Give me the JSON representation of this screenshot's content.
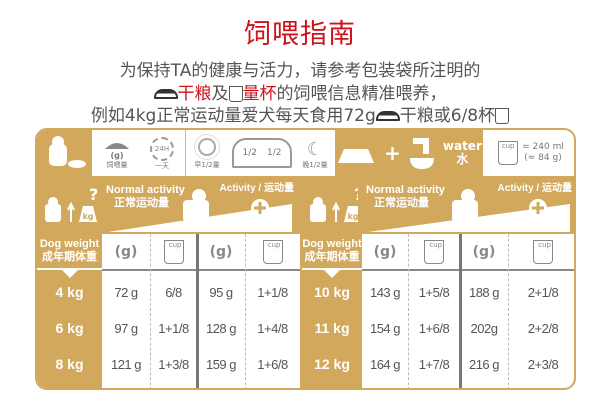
{
  "title": "饲喂指南",
  "intro": {
    "line1": "为保持TA的健康与活力，请参考包装袋所注明的",
    "line2_dry": "干粮",
    "line2_and": "及",
    "line2_cup": "量杯",
    "line2_rest": "的饲喂信息精准喂养，",
    "line3_a": "例如4kg正常运动量爱犬每天食用72g",
    "line3_b": "干粮或6/8杯"
  },
  "top_row": {
    "grams": "(g)",
    "feed_amount": "饲喂量",
    "clock": "24H",
    "one_day": "一天",
    "morning": "早1/2量",
    "half": "1/2",
    "evening": "晚1/2量",
    "water": "water",
    "water_cn": "水",
    "cup": "cup",
    "cup_ml": "= 240 ml",
    "cup_g": "(≈ 84 g)"
  },
  "header": {
    "dog_weight": "Dog weight",
    "dog_weight_cn": "成年期体重",
    "kg": "kg",
    "normal": "Normal activity",
    "normal_cn": "正常运动量",
    "activity": "Activity / 运动量",
    "grams": "(g)",
    "cup": "cup"
  },
  "left_rows": [
    {
      "weight": "4 kg",
      "ng": "72 g",
      "nc": "6/8",
      "ag": "95 g",
      "ac": "1+1/8"
    },
    {
      "weight": "6 kg",
      "ng": "97 g",
      "nc": "1+1/8",
      "ag": "128 g",
      "ac": "1+4/8"
    },
    {
      "weight": "8  kg",
      "ng": "121 g",
      "nc": "1+3/8",
      "ag": "159 g",
      "ac": "1+6/8"
    }
  ],
  "right_rows": [
    {
      "weight": "10 kg",
      "ng": "143 g",
      "nc": "1+5/8",
      "ag": "188 g",
      "ac": "2+1/8"
    },
    {
      "weight": "11 kg",
      "ng": "154 g",
      "nc": "1+6/8",
      "ag": "202g",
      "ac": "2+2/8"
    },
    {
      "weight": "12 kg",
      "ng": "164 g",
      "nc": "1+7/8",
      "ag": "216 g",
      "ac": "2+3/8"
    }
  ],
  "colors": {
    "gold": "#d2a85d",
    "red": "#d0121b"
  }
}
